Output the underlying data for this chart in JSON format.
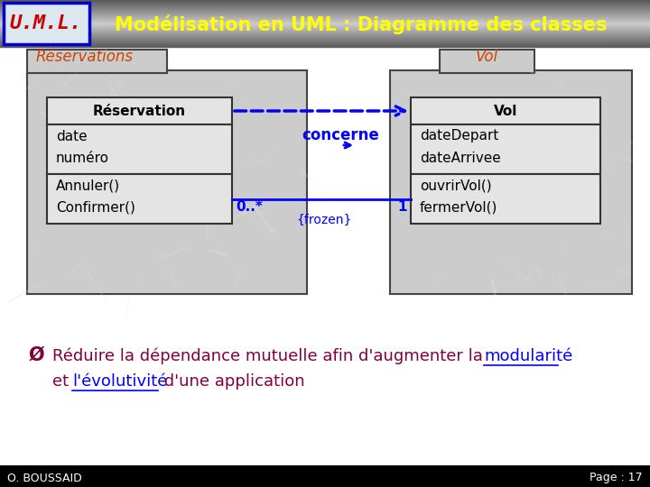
{
  "bg_color": "#ffffff",
  "header_text": "Modélisation en UML : Diagramme des classes",
  "header_text_color": "#ffff00",
  "uml_label": "U.M.L.",
  "uml_label_color": "#cc0000",
  "reservations_label": "Réservations",
  "vol_label": "Vol",
  "class_label_color": "#cc4400",
  "reservation_class": "Réservation",
  "reservation_attrs": [
    "date",
    "numéro"
  ],
  "reservation_methods": [
    "Annuler()",
    "Confirmer()"
  ],
  "vol_class": "Vol",
  "vol_attrs": [
    "dateDepart",
    "dateArrivee"
  ],
  "vol_methods": [
    "ouvrirVol()",
    "fermerVol()"
  ],
  "assoc_label": "concerne",
  "assoc_color": "#0000ff",
  "mult_left": "0..*",
  "mult_right": "1",
  "frozen_label": "{frozen}",
  "bullet_text": "Ø",
  "main_text1": "Réduire la dépendance mutuelle afin d'augmenter la ",
  "main_text1_underline": "modularité",
  "main_text2": "et ",
  "main_text2_underline": "l'évolutivité",
  "main_text2_rest": " d'une application",
  "main_text_color": "#800040",
  "underline_color": "#0000ff",
  "footer_left": "O. BOUSSAID",
  "footer_right": "Page : 17",
  "footer_bg": "#000000",
  "footer_text_color": "#ffffff"
}
